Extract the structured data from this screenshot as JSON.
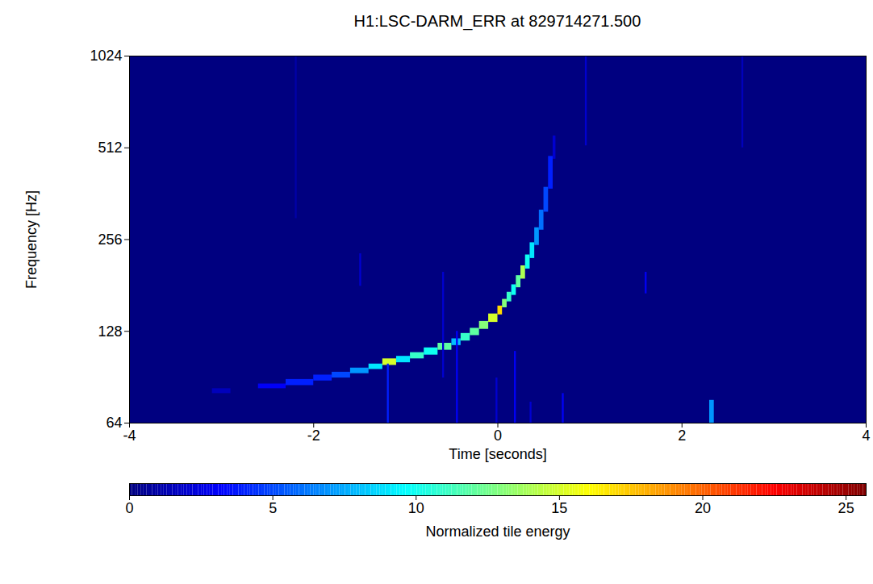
{
  "chart_data": {
    "type": "heatmap",
    "title": "H1:LSC-DARM_ERR at 829714271.500",
    "x_label": "Time [seconds]",
    "y_label": "Frequency [Hz]",
    "log": "y",
    "xlim": [
      -4,
      4
    ],
    "xticks": [
      -4,
      -2,
      0,
      2,
      4
    ],
    "ylim": [
      64,
      1024
    ],
    "yticks": [
      64,
      128,
      256,
      512,
      1024
    ],
    "colorbar": {
      "label": "Normalized tile energy",
      "range": [
        0,
        25.7
      ],
      "ticks": [
        0,
        5,
        10,
        15,
        20,
        25
      ]
    },
    "cells": [
      {
        "t0": -3.1,
        "t1": -2.9,
        "f0": 80,
        "f1": 83,
        "energy": 1.5
      },
      {
        "t0": -2.6,
        "t1": -2.3,
        "f0": 83,
        "f1": 86,
        "energy": 3
      },
      {
        "t0": -2.3,
        "t1": -2.0,
        "f0": 85,
        "f1": 89,
        "energy": 4
      },
      {
        "t0": -2.0,
        "t1": -1.8,
        "f0": 88,
        "f1": 92,
        "energy": 4
      },
      {
        "t0": -1.8,
        "t1": -1.6,
        "f0": 90,
        "f1": 94,
        "energy": 5
      },
      {
        "t0": -1.6,
        "t1": -1.4,
        "f0": 93,
        "f1": 97,
        "energy": 7
      },
      {
        "t0": -1.4,
        "t1": -1.25,
        "f0": 96,
        "f1": 100,
        "energy": 9
      },
      {
        "t0": -1.25,
        "t1": -1.1,
        "f0": 99,
        "f1": 104,
        "energy": 15
      },
      {
        "t0": -1.1,
        "t1": -0.95,
        "f0": 101,
        "f1": 106,
        "energy": 9
      },
      {
        "t0": -0.95,
        "t1": -0.8,
        "f0": 104,
        "f1": 109,
        "energy": 11
      },
      {
        "t0": -0.8,
        "t1": -0.65,
        "f0": 107,
        "f1": 113,
        "energy": 10
      },
      {
        "t0": -0.65,
        "t1": -0.5,
        "f0": 111,
        "f1": 117,
        "energy": 12
      },
      {
        "t0": -0.5,
        "t1": -0.4,
        "f0": 115,
        "f1": 121,
        "energy": 8
      },
      {
        "t0": -0.4,
        "t1": -0.3,
        "f0": 119,
        "f1": 126,
        "energy": 11
      },
      {
        "t0": -0.3,
        "t1": -0.2,
        "f0": 124,
        "f1": 131,
        "energy": 12
      },
      {
        "t0": -0.2,
        "t1": -0.1,
        "f0": 130,
        "f1": 138,
        "energy": 13
      },
      {
        "t0": -0.1,
        "t1": 0.0,
        "f0": 137,
        "f1": 146,
        "energy": 15
      },
      {
        "t0": 0.0,
        "t1": 0.05,
        "f0": 145,
        "f1": 155,
        "energy": 17
      },
      {
        "t0": 0.05,
        "t1": 0.1,
        "f0": 153,
        "f1": 163,
        "energy": 13
      },
      {
        "t0": 0.1,
        "t1": 0.15,
        "f0": 160,
        "f1": 172,
        "energy": 11
      },
      {
        "t0": 0.15,
        "t1": 0.2,
        "f0": 168,
        "f1": 182,
        "energy": 10
      },
      {
        "t0": 0.2,
        "t1": 0.25,
        "f0": 178,
        "f1": 195,
        "energy": 12
      },
      {
        "t0": 0.25,
        "t1": 0.3,
        "f0": 190,
        "f1": 210,
        "energy": 14
      },
      {
        "t0": 0.3,
        "t1": 0.35,
        "f0": 205,
        "f1": 228,
        "energy": 10
      },
      {
        "t0": 0.35,
        "t1": 0.4,
        "f0": 222,
        "f1": 250,
        "energy": 9
      },
      {
        "t0": 0.4,
        "t1": 0.45,
        "f0": 245,
        "f1": 280,
        "energy": 7
      },
      {
        "t0": 0.45,
        "t1": 0.5,
        "f0": 275,
        "f1": 320,
        "energy": 6
      },
      {
        "t0": 0.5,
        "t1": 0.55,
        "f0": 315,
        "f1": 380,
        "energy": 5
      },
      {
        "t0": 0.55,
        "t1": 0.6,
        "f0": 375,
        "f1": 480,
        "energy": 4
      },
      {
        "t0": 0.6,
        "t1": 0.63,
        "f0": 470,
        "f1": 560,
        "energy": 2
      },
      {
        "t0": -1.2,
        "t1": -1.18,
        "f0": 64,
        "f1": 100,
        "energy": 4
      },
      {
        "t0": -0.45,
        "t1": -0.43,
        "f0": 64,
        "f1": 128,
        "energy": 3
      },
      {
        "t0": 0.18,
        "t1": 0.2,
        "f0": 64,
        "f1": 110,
        "energy": 3
      },
      {
        "t0": -0.02,
        "t1": 0.0,
        "f0": 64,
        "f1": 90,
        "energy": 2
      },
      {
        "t0": 0.35,
        "t1": 0.37,
        "f0": 64,
        "f1": 75,
        "energy": 2
      },
      {
        "t0": -2.2,
        "t1": -2.18,
        "f0": 300,
        "f1": 1024,
        "energy": 1
      },
      {
        "t0": 0.95,
        "t1": 0.97,
        "f0": 520,
        "f1": 1024,
        "energy": 2
      },
      {
        "t0": 2.3,
        "t1": 2.35,
        "f0": 64,
        "f1": 76,
        "energy": 7
      },
      {
        "t0": 2.65,
        "t1": 2.67,
        "f0": 512,
        "f1": 1024,
        "energy": 1.5
      },
      {
        "t0": -0.6,
        "t1": -0.58,
        "f0": 90,
        "f1": 200,
        "energy": 2
      },
      {
        "t0": 0.7,
        "t1": 0.72,
        "f0": 64,
        "f1": 80,
        "energy": 3
      },
      {
        "t0": 1.6,
        "t1": 1.62,
        "f0": 170,
        "f1": 200,
        "energy": 3
      },
      {
        "t0": -1.5,
        "t1": -1.48,
        "f0": 180,
        "f1": 230,
        "energy": 2
      }
    ]
  }
}
